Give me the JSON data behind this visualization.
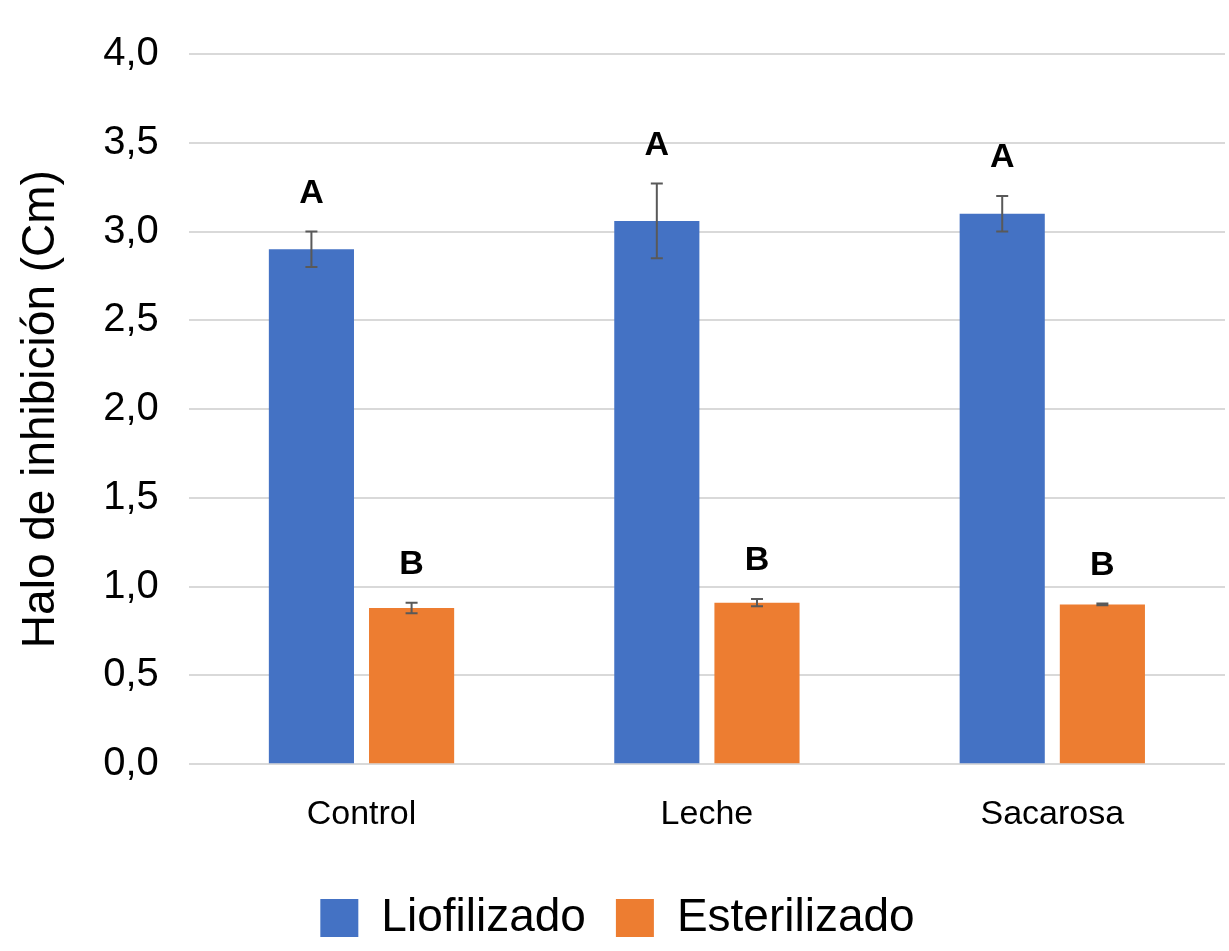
{
  "chart_data": {
    "type": "bar",
    "ylabel": "Halo de inhibición (Cm)",
    "categories": [
      "Control",
      "Leche",
      "Sacarosa"
    ],
    "series": [
      {
        "name": "Liofilizado",
        "color": "#4472c4",
        "values": [
          2.9,
          3.06,
          3.1
        ],
        "errors": [
          0.1,
          0.21,
          0.1
        ]
      },
      {
        "name": "Esterilizado",
        "color": "#ed7d31",
        "values": [
          0.88,
          0.91,
          0.9
        ],
        "errors": [
          0.03,
          0.02,
          0.005
        ]
      }
    ],
    "ylim": [
      0,
      4
    ],
    "yticks": [
      {
        "value": 0,
        "label": "0,0"
      },
      {
        "value": 0.5,
        "label": "0,5"
      },
      {
        "value": 1,
        "label": "1,0"
      },
      {
        "value": 1.5,
        "label": "1,5"
      },
      {
        "value": 2,
        "label": "2,0"
      },
      {
        "value": 2.5,
        "label": "2,5"
      },
      {
        "value": 3,
        "label": "3,0"
      },
      {
        "value": 3.5,
        "label": "3,5"
      },
      {
        "value": 4,
        "label": "4,0"
      }
    ],
    "grid": "y",
    "legend": "bottom",
    "annotations": [
      "A",
      "A",
      "A",
      "B",
      "B",
      "B"
    ]
  }
}
